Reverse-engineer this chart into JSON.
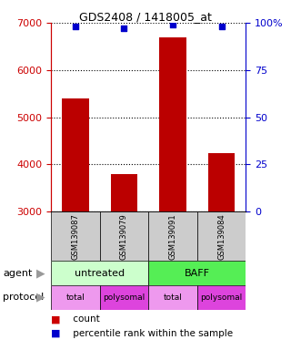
{
  "title": "GDS2408 / 1418005_at",
  "samples": [
    "GSM139087",
    "GSM139079",
    "GSM139091",
    "GSM139084"
  ],
  "counts": [
    5400,
    3800,
    6700,
    4250
  ],
  "percentile_ranks": [
    98,
    97,
    99,
    98
  ],
  "ylim_left": [
    3000,
    7000
  ],
  "ylim_right": [
    0,
    100
  ],
  "yticks_left": [
    3000,
    4000,
    5000,
    6000,
    7000
  ],
  "yticks_right": [
    0,
    25,
    50,
    75,
    100
  ],
  "bar_color": "#bb0000",
  "dot_color": "#0000cc",
  "sample_box_color": "#cccccc",
  "agent_untreated_color": "#ccffcc",
  "agent_baff_color": "#55ee55",
  "protocol_total_color": "#ee99ee",
  "protocol_polysomal_color": "#dd44dd",
  "protocol_labels": [
    "total",
    "polysomal",
    "total",
    "polysomal"
  ],
  "left_tick_color": "#cc0000",
  "right_tick_color": "#0000cc",
  "legend_items": [
    {
      "color": "#cc0000",
      "label": " count"
    },
    {
      "color": "#0000cc",
      "label": " percentile rank within the sample"
    }
  ]
}
